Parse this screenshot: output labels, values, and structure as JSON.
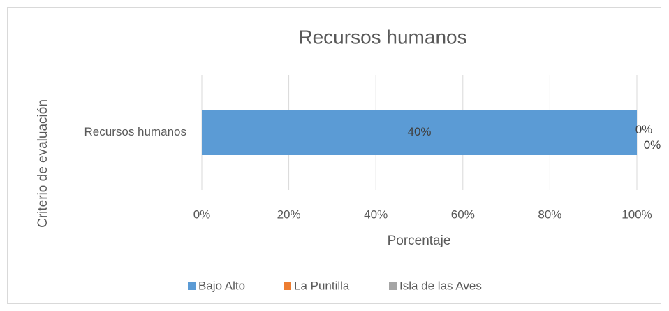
{
  "chart_data": {
    "type": "bar",
    "orientation": "horizontal",
    "stacking": "percent",
    "title": "Recursos humanos",
    "x_label": "Porcentaje",
    "y_label": "Criterio de evaluación",
    "categories": [
      "Recursos humanos"
    ],
    "series": [
      {
        "name": "Bajo Alto",
        "color": "#5b9bd5",
        "values": [
          40
        ],
        "value_labels": [
          "40%"
        ]
      },
      {
        "name": "La Puntilla",
        "color": "#ed7d31",
        "values": [
          0
        ],
        "value_labels": [
          "0%"
        ]
      },
      {
        "name": "Isla de las Aves",
        "color": "#a5a5a5",
        "values": [
          0
        ],
        "value_labels": [
          "0%"
        ]
      }
    ],
    "xlim": [
      0,
      100
    ],
    "xticks": [
      {
        "value": 0,
        "label": "0%"
      },
      {
        "value": 20,
        "label": "20%"
      },
      {
        "value": 40,
        "label": "40%"
      },
      {
        "value": 60,
        "label": "60%"
      },
      {
        "value": 80,
        "label": "80%"
      },
      {
        "value": 100,
        "label": "100%"
      }
    ],
    "grid": true,
    "legend": "bottom"
  }
}
